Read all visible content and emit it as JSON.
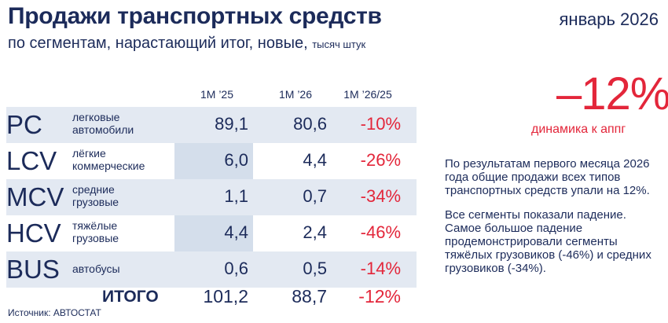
{
  "header": {
    "title": "Продажи транспортных средств",
    "subtitle": "по сегментам, нарастающий итог, новые,",
    "unit": "тысяч штук",
    "date": "январь 2026"
  },
  "chart_data": {
    "type": "table",
    "columns": [
      "1M ’25",
      "1M ’26",
      "1M ’26/25"
    ],
    "rows": [
      {
        "code": "PC",
        "label": "легковые\nавтомобили",
        "v25": "89,1",
        "v26": "80,6",
        "change": "-10%"
      },
      {
        "code": "LCV",
        "label": "лёгкие\nкоммерческие",
        "v25": "6,0",
        "v26": "4,4",
        "change": "-26%"
      },
      {
        "code": "MCV",
        "label": "средние\nгрузовые",
        "v25": "1,1",
        "v26": "0,7",
        "change": "-34%"
      },
      {
        "code": "HCV",
        "label": "тяжёлые\nгрузовые",
        "v25": "4,4",
        "v26": "2,4",
        "change": "-46%"
      },
      {
        "code": "BUS",
        "label": "автобусы",
        "v25": "0,6",
        "v26": "0,5",
        "change": "-14%"
      }
    ],
    "total": {
      "label": "ИТОГО",
      "v25": "101,2",
      "v26": "88,7",
      "change": "-12%"
    }
  },
  "highlight": {
    "value": "–12%",
    "label": "динамика к аппг"
  },
  "notes": [
    "По результатам первого месяца 2026 года общие продажи всех типов транспортных средств упали на 12%.",
    "Все сегменты показали падение. Самое большое падение продемонстрировали сегменты тяжёлых грузовиков (-46%) и средних грузовиков (-34%)."
  ],
  "source": "Источник: АВТОСТАТ",
  "colors": {
    "accent": "#e3263a",
    "text": "#1c2b5a",
    "row_shade": "#e3e9f2",
    "col_shade": "#d4deeb"
  }
}
